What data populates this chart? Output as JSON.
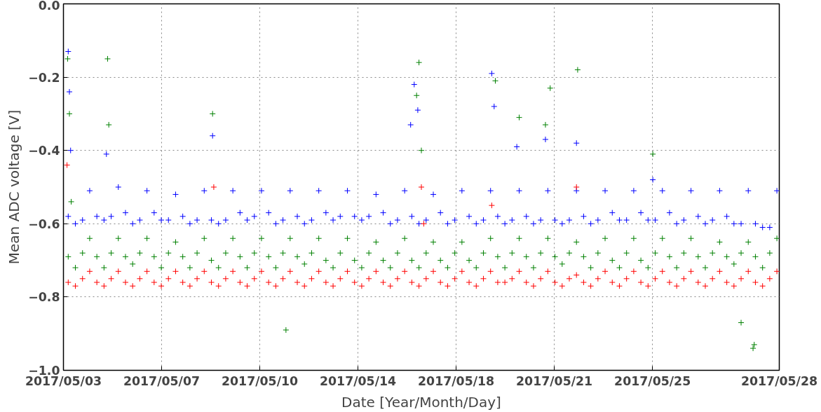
{
  "chart_data": {
    "type": "scatter",
    "xlabel": "Date [Year/Month/Day]",
    "ylabel": "Mean ADC voltage [V]",
    "x": [
      "2017-05-03T04:00",
      "2017-05-03T10:00",
      "2017-05-03T16:00",
      "2017-05-03T22:00",
      "2017-05-04T04:00",
      "2017-05-04T10:00",
      "2017-05-04T16:00",
      "2017-05-04T22:00",
      "2017-05-05T04:00",
      "2017-05-05T10:00",
      "2017-05-05T16:00",
      "2017-05-05T22:00",
      "2017-05-06T04:00",
      "2017-05-06T10:00",
      "2017-05-06T16:00",
      "2017-05-06T22:00",
      "2017-05-07T04:00",
      "2017-05-07T10:00",
      "2017-05-07T16:00",
      "2017-05-07T22:00",
      "2017-05-08T04:00",
      "2017-05-08T10:00",
      "2017-05-08T16:00",
      "2017-05-08T22:00",
      "2017-05-09T04:00",
      "2017-05-09T10:00",
      "2017-05-09T16:00",
      "2017-05-09T22:00",
      "2017-05-10T04:00",
      "2017-05-10T10:00",
      "2017-05-10T16:00",
      "2017-05-10T22:00",
      "2017-05-11T04:00",
      "2017-05-11T10:00",
      "2017-05-11T16:00",
      "2017-05-11T22:00",
      "2017-05-12T04:00",
      "2017-05-12T10:00",
      "2017-05-12T16:00",
      "2017-05-12T22:00",
      "2017-05-13T04:00",
      "2017-05-13T10:00",
      "2017-05-13T16:00",
      "2017-05-13T22:00",
      "2017-05-14T04:00",
      "2017-05-14T10:00",
      "2017-05-14T16:00",
      "2017-05-14T22:00",
      "2017-05-15T04:00",
      "2017-05-15T10:00",
      "2017-05-15T16:00",
      "2017-05-15T22:00",
      "2017-05-16T04:00",
      "2017-05-16T10:00",
      "2017-05-16T16:00",
      "2017-05-16T22:00",
      "2017-05-17T04:00",
      "2017-05-17T10:00",
      "2017-05-17T16:00",
      "2017-05-17T22:00",
      "2017-05-18T04:00",
      "2017-05-18T10:00",
      "2017-05-18T16:00",
      "2017-05-18T22:00",
      "2017-05-19T04:00",
      "2017-05-19T10:00",
      "2017-05-19T16:00",
      "2017-05-19T22:00",
      "2017-05-20T04:00",
      "2017-05-20T10:00",
      "2017-05-20T16:00",
      "2017-05-20T22:00",
      "2017-05-21T04:00",
      "2017-05-21T10:00",
      "2017-05-21T16:00",
      "2017-05-21T22:00",
      "2017-05-22T04:00",
      "2017-05-22T10:00",
      "2017-05-22T16:00",
      "2017-05-22T22:00",
      "2017-05-23T04:00",
      "2017-05-23T10:00",
      "2017-05-23T16:00",
      "2017-05-23T22:00",
      "2017-05-24T04:00",
      "2017-05-24T10:00",
      "2017-05-24T16:00",
      "2017-05-24T22:00",
      "2017-05-25T04:00",
      "2017-05-25T10:00",
      "2017-05-25T16:00",
      "2017-05-25T22:00",
      "2017-05-26T04:00",
      "2017-05-26T10:00",
      "2017-05-26T16:00",
      "2017-05-26T22:00",
      "2017-05-27T04:00",
      "2017-05-27T10:00",
      "2017-05-27T16:00",
      "2017-05-27T22:00"
    ],
    "series": [
      {
        "color": "#0000ff",
        "values": [
          -0.58,
          -0.6,
          -0.59,
          -0.51,
          -0.58,
          -0.59,
          -0.58,
          -0.5,
          -0.57,
          -0.6,
          -0.59,
          -0.51,
          -0.57,
          -0.59,
          -0.59,
          -0.52,
          -0.58,
          -0.6,
          -0.59,
          -0.51,
          -0.59,
          -0.6,
          -0.59,
          -0.51,
          -0.57,
          -0.59,
          -0.58,
          -0.51,
          -0.57,
          -0.6,
          -0.59,
          -0.51,
          -0.58,
          -0.6,
          -0.59,
          -0.51,
          -0.57,
          -0.59,
          -0.58,
          -0.51,
          -0.58,
          -0.59,
          -0.58,
          -0.52,
          -0.57,
          -0.6,
          -0.59,
          -0.51,
          -0.58,
          -0.6,
          -0.59,
          -0.52,
          -0.57,
          -0.6,
          -0.59,
          -0.51,
          -0.58,
          -0.6,
          -0.59,
          -0.51,
          -0.58,
          -0.6,
          -0.59,
          -0.51,
          -0.58,
          -0.6,
          -0.59,
          -0.51,
          -0.59,
          -0.6,
          -0.59,
          -0.51,
          -0.58,
          -0.6,
          -0.59,
          -0.51,
          -0.57,
          -0.59,
          -0.59,
          -0.51,
          -0.57,
          -0.59,
          -0.59,
          -0.51,
          -0.57,
          -0.6,
          -0.59,
          -0.51,
          -0.58,
          -0.6,
          -0.59,
          -0.51,
          -0.58,
          -0.6,
          -0.6,
          -0.51,
          -0.6,
          -0.61,
          -0.61,
          -0.51
        ]
      },
      {
        "color": "#008000",
        "values": [
          -0.69,
          -0.72,
          -0.68,
          -0.64,
          -0.69,
          -0.72,
          -0.68,
          -0.64,
          -0.69,
          -0.71,
          -0.68,
          -0.64,
          -0.69,
          -0.72,
          -0.68,
          -0.65,
          -0.69,
          -0.72,
          -0.68,
          -0.64,
          -0.7,
          -0.72,
          -0.68,
          -0.64,
          -0.69,
          -0.72,
          -0.68,
          -0.64,
          -0.69,
          -0.72,
          -0.68,
          -0.64,
          -0.69,
          -0.71,
          -0.68,
          -0.64,
          -0.7,
          -0.72,
          -0.68,
          -0.64,
          -0.7,
          -0.72,
          -0.68,
          -0.65,
          -0.7,
          -0.72,
          -0.68,
          -0.64,
          -0.7,
          -0.72,
          -0.68,
          -0.65,
          -0.7,
          -0.72,
          -0.68,
          -0.65,
          -0.7,
          -0.72,
          -0.68,
          -0.64,
          -0.69,
          -0.72,
          -0.68,
          -0.64,
          -0.69,
          -0.72,
          -0.68,
          -0.64,
          -0.69,
          -0.71,
          -0.68,
          -0.65,
          -0.69,
          -0.72,
          -0.68,
          -0.64,
          -0.7,
          -0.72,
          -0.68,
          -0.64,
          -0.7,
          -0.72,
          -0.68,
          -0.64,
          -0.69,
          -0.72,
          -0.68,
          -0.64,
          -0.69,
          -0.72,
          -0.68,
          -0.65,
          -0.69,
          -0.71,
          -0.68,
          -0.65,
          -0.69,
          -0.72,
          -0.68,
          -0.64
        ]
      },
      {
        "color": "#ff0000",
        "values": [
          -0.76,
          -0.77,
          -0.75,
          -0.73,
          -0.76,
          -0.77,
          -0.75,
          -0.73,
          -0.76,
          -0.77,
          -0.75,
          -0.73,
          -0.76,
          -0.77,
          -0.75,
          -0.73,
          -0.76,
          -0.77,
          -0.75,
          -0.73,
          -0.76,
          -0.77,
          -0.75,
          -0.73,
          -0.76,
          -0.77,
          -0.75,
          -0.73,
          -0.76,
          -0.77,
          -0.75,
          -0.73,
          -0.76,
          -0.77,
          -0.75,
          -0.73,
          -0.76,
          -0.77,
          -0.75,
          -0.73,
          -0.76,
          -0.77,
          -0.75,
          -0.73,
          -0.76,
          -0.77,
          -0.75,
          -0.73,
          -0.76,
          -0.77,
          -0.75,
          -0.73,
          -0.76,
          -0.77,
          -0.75,
          -0.73,
          -0.76,
          -0.77,
          -0.75,
          -0.73,
          -0.76,
          -0.76,
          -0.75,
          -0.73,
          -0.76,
          -0.77,
          -0.75,
          -0.73,
          -0.76,
          -0.77,
          -0.75,
          -0.74,
          -0.76,
          -0.77,
          -0.75,
          -0.73,
          -0.76,
          -0.77,
          -0.75,
          -0.73,
          -0.76,
          -0.77,
          -0.75,
          -0.73,
          -0.76,
          -0.77,
          -0.75,
          -0.73,
          -0.76,
          -0.77,
          -0.75,
          -0.73,
          -0.76,
          -0.77,
          -0.75,
          -0.73,
          -0.76,
          -0.77,
          -0.75,
          -0.73
        ]
      },
      {
        "color": "#0000ff",
        "x": [
          "2017-05-03T04:00",
          "2017-05-03T05:00",
          "2017-05-03T06:00",
          "2017-05-04T12:00",
          "2017-05-08T05:00",
          "2017-05-15T03:00",
          "2017-05-15T06:00",
          "2017-05-15T09:00",
          "2017-05-17T23:00",
          "2017-05-18T01:00",
          "2017-05-18T20:00",
          "2017-05-19T20:00",
          "2017-05-20T22:00",
          "2017-05-23T14:00"
        ],
        "values": [
          -0.13,
          -0.24,
          -0.4,
          -0.41,
          -0.36,
          -0.33,
          -0.22,
          -0.29,
          -0.19,
          -0.28,
          -0.39,
          -0.37,
          -0.38,
          -0.48
        ]
      },
      {
        "color": "#008000",
        "x": [
          "2017-05-03T03:30",
          "2017-05-03T05:00",
          "2017-05-03T06:30",
          "2017-05-04T13:00",
          "2017-05-04T14:00",
          "2017-05-08T05:00",
          "2017-05-10T18:30",
          "2017-05-15T08:00",
          "2017-05-15T10:00",
          "2017-05-15T12:00",
          "2017-05-18T02:00",
          "2017-05-18T22:00",
          "2017-05-19T20:00",
          "2017-05-20T00:00",
          "2017-05-20T23:00",
          "2017-05-23T14:00",
          "2017-05-26T16:00",
          "2017-05-27T02:00",
          "2017-05-27T03:00"
        ],
        "values": [
          -0.15,
          -0.3,
          -0.54,
          -0.15,
          -0.33,
          -0.3,
          -0.89,
          -0.25,
          -0.16,
          -0.4,
          -0.21,
          -0.31,
          -0.33,
          -0.23,
          -0.18,
          -0.41,
          -0.87,
          -0.94,
          -0.93
        ]
      },
      {
        "color": "#ff0000",
        "x": [
          "2017-05-03T03:00",
          "2017-05-08T06:00",
          "2017-05-15T12:00",
          "2017-05-15T14:00",
          "2017-05-17T23:00",
          "2017-05-20T22:00"
        ],
        "values": [
          -0.44,
          -0.5,
          -0.5,
          -0.6,
          -0.55,
          -0.5
        ]
      }
    ],
    "xlim": [
      "2017-05-03T00:00",
      "2017-05-28T00:00"
    ],
    "xticks": [
      {
        "value": "2017-05-03T00:00",
        "label": "2017/05/03"
      },
      {
        "value": "2017-05-06T10:17",
        "label": "2017/05/07"
      },
      {
        "value": "2017-05-09T20:34",
        "label": "2017/05/10"
      },
      {
        "value": "2017-05-13T06:51",
        "label": "2017/05/14"
      },
      {
        "value": "2017-05-16T17:09",
        "label": "2017/05/18"
      },
      {
        "value": "2017-05-20T03:26",
        "label": "2017/05/21"
      },
      {
        "value": "2017-05-23T13:43",
        "label": "2017/05/25"
      },
      {
        "value": "2017-05-28T00:00",
        "label": "2017/05/28"
      }
    ],
    "ylim": [
      -1.0,
      0.0
    ],
    "yticks": [
      {
        "value": -1.0,
        "label": "−1.0"
      },
      {
        "value": -0.8,
        "label": "−0.8"
      },
      {
        "value": -0.6,
        "label": "−0.6"
      },
      {
        "value": -0.4,
        "label": "−0.4"
      },
      {
        "value": -0.2,
        "label": "−0.2"
      },
      {
        "value": 0.0,
        "label": "0.0"
      }
    ],
    "grid": true,
    "marker": "cross"
  }
}
